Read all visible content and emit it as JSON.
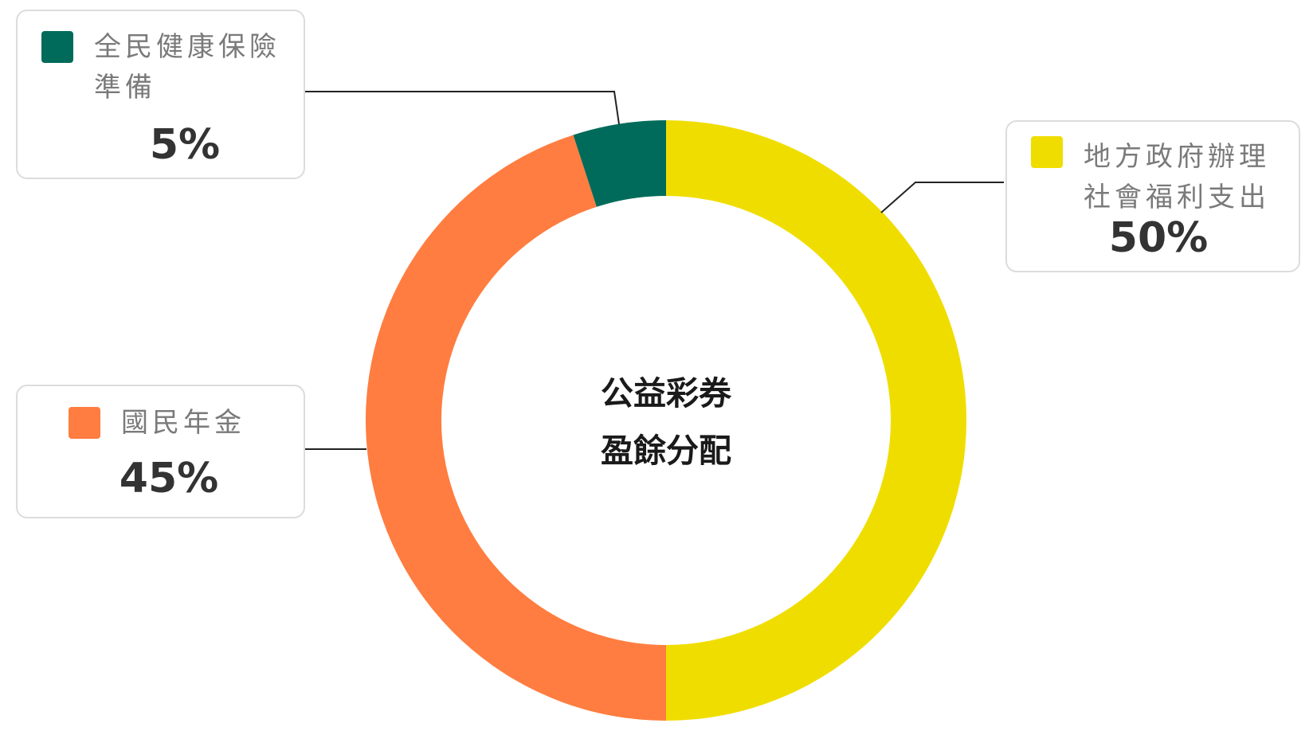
{
  "chart_data": {
    "type": "pie",
    "variant": "donut",
    "title": "公益彩券\n盈餘分配",
    "title_lines": [
      "公益彩券",
      "盈餘分配"
    ],
    "slices": [
      {
        "label": "地方政府辦理社會福利支出",
        "label_lines": [
          "地方政府辦理",
          "社會福利支出"
        ],
        "value": 50,
        "value_label": "50%",
        "color": "#f0dd00"
      },
      {
        "label": "國民年金",
        "label_lines": [
          "國民年金",
          ""
        ],
        "value": 45,
        "value_label": "45%",
        "color": "#ff7d40"
      },
      {
        "label": "全民健康保險準備",
        "label_lines": [
          "全民健康保險",
          "準備"
        ],
        "value": 5,
        "value_label": "5%",
        "color": "#006b5a"
      }
    ],
    "start_angle": "12 o'clock",
    "direction": "clockwise",
    "legend": "callout boxes"
  }
}
